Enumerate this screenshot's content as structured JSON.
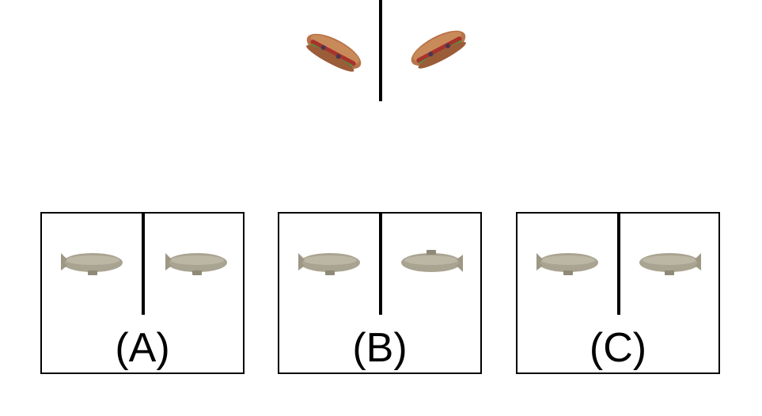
{
  "example": {
    "left_icon": "sandwich-icon",
    "right_icon": "sandwich-icon"
  },
  "options": [
    {
      "label": "(A)",
      "left_icon": "blimp-icon",
      "right_icon": "blimp-icon"
    },
    {
      "label": "(B)",
      "left_icon": "blimp-icon",
      "right_icon": "blimp-icon"
    },
    {
      "label": "(C)",
      "left_icon": "blimp-icon",
      "right_icon": "blimp-icon"
    }
  ],
  "colors": {
    "line": "#000000",
    "blimp": "#a9a391",
    "bread": "#b8734a",
    "meat": "#a8322d",
    "lettuce": "#5a8a3a"
  }
}
